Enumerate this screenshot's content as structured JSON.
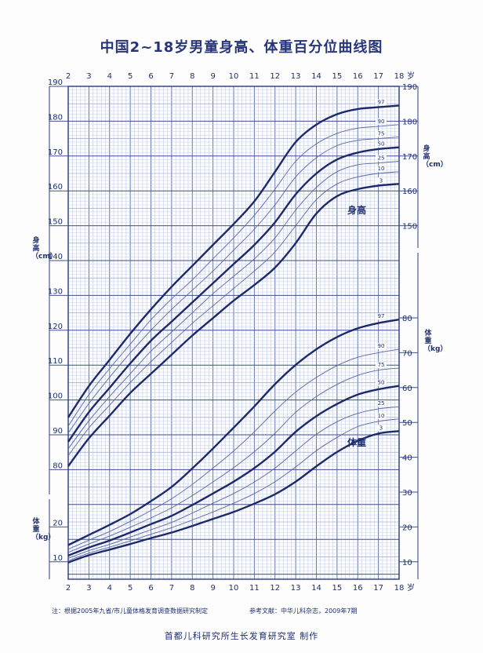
{
  "title": "中国2~18岁男童身高、体重百分位曲线图",
  "footer": {
    "note": "注：根据2005年九省/市儿童体格发育调查数据研究制定",
    "reference": "参考文献：中华儿科杂志，2009年7期",
    "maker": "首都儿科研究所生长发育研究室 制作"
  },
  "chart_data": {
    "type": "line",
    "x_unit_label": "岁",
    "x_ticks": [
      2,
      3,
      4,
      5,
      6,
      7,
      8,
      9,
      10,
      11,
      12,
      13,
      14,
      15,
      16,
      17,
      18
    ],
    "xlim": [
      2,
      18
    ],
    "height": {
      "axis_label": "身高（cm）",
      "curve_label": "身高",
      "ylim": [
        70,
        190
      ],
      "left_ticks": [
        80,
        90,
        100,
        110,
        120,
        130,
        140,
        150,
        160,
        170,
        180,
        190
      ],
      "right_ticks": [
        150,
        160,
        170,
        180,
        190
      ],
      "x": [
        2,
        3,
        4,
        5,
        6,
        7,
        8,
        9,
        10,
        11,
        12,
        13,
        14,
        15,
        16,
        17,
        18
      ],
      "series": [
        {
          "name": "3",
          "values": [
            81,
            89,
            95.5,
            102,
            107.5,
            113,
            118.5,
            123.5,
            128.5,
            133,
            138,
            145,
            153.5,
            158.5,
            160.5,
            161.5,
            162
          ]
        },
        {
          "name": "10",
          "values": [
            84,
            92,
            98.5,
            105,
            111,
            116.5,
            122,
            127,
            132,
            137,
            142.5,
            150,
            157.5,
            162,
            164,
            165,
            165.5
          ]
        },
        {
          "name": "25",
          "values": [
            86,
            94,
            101,
            107.5,
            114,
            119.5,
            125,
            130.5,
            135.5,
            140.5,
            146.5,
            154.5,
            161,
            165.5,
            167.5,
            168,
            168.5
          ]
        },
        {
          "name": "50",
          "values": [
            88,
            96.5,
            103.5,
            110.5,
            117,
            122.5,
            128,
            133.5,
            139,
            144.5,
            151,
            159,
            165,
            169,
            171,
            172,
            172.5
          ]
        },
        {
          "name": "75",
          "values": [
            90.5,
            99,
            106.5,
            113.5,
            120,
            126,
            131.5,
            137,
            143,
            149,
            156,
            164,
            169.5,
            173,
            174.5,
            175,
            175.5
          ]
        },
        {
          "name": "90",
          "values": [
            92.5,
            101.5,
            109,
            116,
            123,
            129,
            134.5,
            140.5,
            146.5,
            153,
            160.5,
            168.5,
            173.5,
            176.5,
            178,
            178.5,
            179
          ]
        },
        {
          "name": "97",
          "values": [
            95,
            104,
            111.5,
            119,
            126,
            132.5,
            138.5,
            144.5,
            150.5,
            157,
            165.5,
            174,
            179,
            182,
            183.5,
            184,
            184.5
          ]
        }
      ]
    },
    "weight": {
      "axis_label": "体重（kg）",
      "curve_label": "体重",
      "ylim": [
        5,
        95
      ],
      "left_ticks": [
        10,
        20
      ],
      "right_ticks": [
        10,
        20,
        30,
        40,
        50,
        60,
        70,
        80
      ],
      "x": [
        2,
        3,
        4,
        5,
        6,
        7,
        8,
        9,
        10,
        11,
        12,
        13,
        14,
        15,
        16,
        17,
        18
      ],
      "series": [
        {
          "name": "3",
          "values": [
            9.8,
            11.9,
            13.5,
            15.1,
            16.8,
            18.4,
            20.3,
            22.3,
            24.3,
            26.7,
            29.4,
            33,
            37.4,
            41.5,
            44.7,
            46.8,
            47.5
          ]
        },
        {
          "name": "10",
          "values": [
            10.3,
            12.5,
            14.2,
            16,
            17.9,
            19.8,
            22,
            24.3,
            26.8,
            29.6,
            33,
            37.2,
            41.9,
            45.7,
            48.8,
            50.3,
            51
          ]
        },
        {
          "name": "25",
          "values": [
            11,
            13.2,
            15,
            17.1,
            19.2,
            21.3,
            24,
            26.8,
            29.6,
            32.9,
            36.9,
            41.8,
            46.6,
            50.2,
            52.6,
            53.9,
            54.5
          ]
        },
        {
          "name": "50",
          "values": [
            11.8,
            14.1,
            16.1,
            18.4,
            20.8,
            23.2,
            26.3,
            29.6,
            33,
            36.9,
            41.6,
            47.3,
            51.8,
            55.3,
            58,
            59.5,
            60.5
          ]
        },
        {
          "name": "75",
          "values": [
            12.7,
            15.1,
            17.4,
            19.9,
            22.6,
            25.5,
            29,
            32.9,
            37,
            41.6,
            46.9,
            52.9,
            57.4,
            60.9,
            63.5,
            65,
            65.6
          ]
        },
        {
          "name": "90",
          "values": [
            13.6,
            16.2,
            18.7,
            21.6,
            24.7,
            28.1,
            32.2,
            36.9,
            41.8,
            47.3,
            53.3,
            58.7,
            62.9,
            66.3,
            68.7,
            70,
            71
          ]
        },
        {
          "name": "97",
          "values": [
            14.8,
            17.7,
            20.6,
            23.7,
            27.4,
            31.5,
            36.8,
            42.5,
            48.5,
            54.6,
            61,
            66.5,
            71,
            74.5,
            77,
            78.5,
            79.5
          ]
        }
      ]
    },
    "grid": true
  }
}
